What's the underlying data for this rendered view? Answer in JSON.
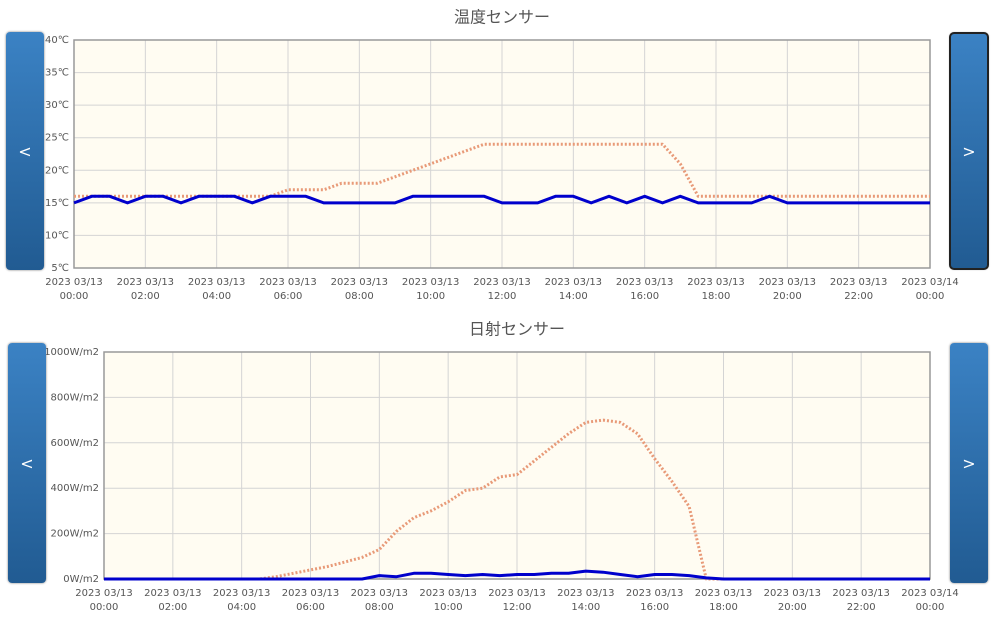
{
  "controls": [
    {
      "prev": "<",
      "next": ">"
    },
    {
      "prev": "<",
      "next": ">"
    }
  ],
  "chart_data": [
    {
      "type": "line",
      "title": "温度センサー",
      "x": [
        0,
        0.5,
        1,
        1.5,
        2,
        2.5,
        3,
        3.5,
        4,
        4.5,
        5,
        5.5,
        6,
        6.5,
        7,
        7.5,
        8,
        8.5,
        9,
        9.5,
        10,
        10.5,
        11,
        11.5,
        12,
        12.5,
        13,
        13.5,
        14,
        14.5,
        15,
        15.5,
        16,
        16.5,
        17,
        17.5,
        18,
        18.5,
        19,
        19.5,
        20,
        20.5,
        21,
        21.5,
        22,
        22.5,
        23,
        23.5,
        24
      ],
      "series": [
        {
          "color": "#e89a78",
          "style": "dotted",
          "values": [
            16,
            16,
            16,
            16,
            16,
            16,
            16,
            16,
            16,
            16,
            16,
            16,
            17,
            17,
            17,
            18,
            18,
            18,
            19,
            20,
            21,
            22,
            23,
            24,
            24,
            24,
            24,
            24,
            24,
            24,
            24,
            24,
            24,
            24,
            21,
            16,
            16,
            16,
            16,
            16,
            16,
            16,
            16,
            16,
            16,
            16,
            16,
            16,
            16
          ]
        },
        {
          "color": "#0000cc",
          "style": "solid",
          "values": [
            15,
            16,
            16,
            15,
            16,
            16,
            15,
            16,
            16,
            16,
            15,
            16,
            16,
            16,
            15,
            15,
            15,
            15,
            15,
            16,
            16,
            16,
            16,
            16,
            15,
            15,
            15,
            16,
            16,
            15,
            16,
            15,
            16,
            15,
            16,
            15,
            15,
            15,
            15,
            16,
            15,
            15,
            15,
            15,
            15,
            15,
            15,
            15,
            15
          ]
        }
      ],
      "xlim": [
        0,
        24
      ],
      "xticks": [
        {
          "value": 0,
          "label": "2023 03/13\n00:00"
        },
        {
          "value": 2,
          "label": "2023 03/13\n02:00"
        },
        {
          "value": 4,
          "label": "2023 03/13\n04:00"
        },
        {
          "value": 6,
          "label": "2023 03/13\n06:00"
        },
        {
          "value": 8,
          "label": "2023 03/13\n08:00"
        },
        {
          "value": 10,
          "label": "2023 03/13\n10:00"
        },
        {
          "value": 12,
          "label": "2023 03/13\n12:00"
        },
        {
          "value": 14,
          "label": "2023 03/13\n14:00"
        },
        {
          "value": 16,
          "label": "2023 03/13\n16:00"
        },
        {
          "value": 18,
          "label": "2023 03/13\n18:00"
        },
        {
          "value": 20,
          "label": "2023 03/13\n20:00"
        },
        {
          "value": 22,
          "label": "2023 03/13\n22:00"
        },
        {
          "value": 24,
          "label": "2023 03/14\n00:00"
        }
      ],
      "ylim": [
        5,
        40
      ],
      "yticks": [
        {
          "value": 5,
          "label": "5℃"
        },
        {
          "value": 10,
          "label": "10℃"
        },
        {
          "value": 15,
          "label": "15℃"
        },
        {
          "value": 20,
          "label": "20℃"
        },
        {
          "value": 25,
          "label": "25℃"
        },
        {
          "value": 30,
          "label": "30℃"
        },
        {
          "value": 35,
          "label": "35℃"
        },
        {
          "value": 40,
          "label": "40℃"
        }
      ],
      "grid": true
    },
    {
      "type": "line",
      "title": "日射センサー",
      "x": [
        0,
        0.5,
        1,
        1.5,
        2,
        2.5,
        3,
        3.5,
        4,
        4.5,
        5,
        5.5,
        6,
        6.5,
        7,
        7.5,
        8,
        8.5,
        9,
        9.5,
        10,
        10.5,
        11,
        11.5,
        12,
        12.5,
        13,
        13.5,
        14,
        14.5,
        15,
        15.5,
        16,
        16.5,
        17,
        17.5,
        18,
        18.5,
        19,
        19.5,
        20,
        20.5,
        21,
        21.5,
        22,
        22.5,
        23,
        23.5,
        24
      ],
      "series": [
        {
          "color": "#e89a78",
          "style": "dotted",
          "values": [
            0,
            0,
            0,
            0,
            0,
            0,
            0,
            0,
            0,
            0,
            10,
            25,
            40,
            55,
            75,
            95,
            130,
            210,
            270,
            300,
            340,
            390,
            400,
            450,
            460,
            520,
            580,
            640,
            690,
            700,
            690,
            640,
            530,
            430,
            320,
            0,
            0,
            0,
            0,
            0,
            0,
            0,
            0,
            0,
            0,
            0,
            0,
            0,
            0
          ]
        },
        {
          "color": "#0000cc",
          "style": "solid",
          "values": [
            0,
            0,
            0,
            0,
            0,
            0,
            0,
            0,
            0,
            0,
            0,
            0,
            0,
            0,
            0,
            0,
            15,
            10,
            25,
            25,
            20,
            15,
            20,
            15,
            20,
            20,
            25,
            25,
            35,
            30,
            20,
            10,
            20,
            20,
            15,
            5,
            0,
            0,
            0,
            0,
            0,
            0,
            0,
            0,
            0,
            0,
            0,
            0,
            0
          ]
        }
      ],
      "xlim": [
        0,
        24
      ],
      "xticks": [
        {
          "value": 0,
          "label": "2023 03/13\n00:00"
        },
        {
          "value": 2,
          "label": "2023 03/13\n02:00"
        },
        {
          "value": 4,
          "label": "2023 03/13\n04:00"
        },
        {
          "value": 6,
          "label": "2023 03/13\n06:00"
        },
        {
          "value": 8,
          "label": "2023 03/13\n08:00"
        },
        {
          "value": 10,
          "label": "2023 03/13\n10:00"
        },
        {
          "value": 12,
          "label": "2023 03/13\n12:00"
        },
        {
          "value": 14,
          "label": "2023 03/13\n14:00"
        },
        {
          "value": 16,
          "label": "2023 03/13\n16:00"
        },
        {
          "value": 18,
          "label": "2023 03/13\n18:00"
        },
        {
          "value": 20,
          "label": "2023 03/13\n20:00"
        },
        {
          "value": 22,
          "label": "2023 03/13\n22:00"
        },
        {
          "value": 24,
          "label": "2023 03/14\n00:00"
        }
      ],
      "ylim": [
        0,
        1000
      ],
      "yticks": [
        {
          "value": 0,
          "label": "0W/m2"
        },
        {
          "value": 200,
          "label": "200W/m2"
        },
        {
          "value": 400,
          "label": "400W/m2"
        },
        {
          "value": 600,
          "label": "600W/m2"
        },
        {
          "value": 800,
          "label": "800W/m2"
        },
        {
          "value": 1000,
          "label": "1000W/m2"
        }
      ],
      "grid": true
    }
  ]
}
